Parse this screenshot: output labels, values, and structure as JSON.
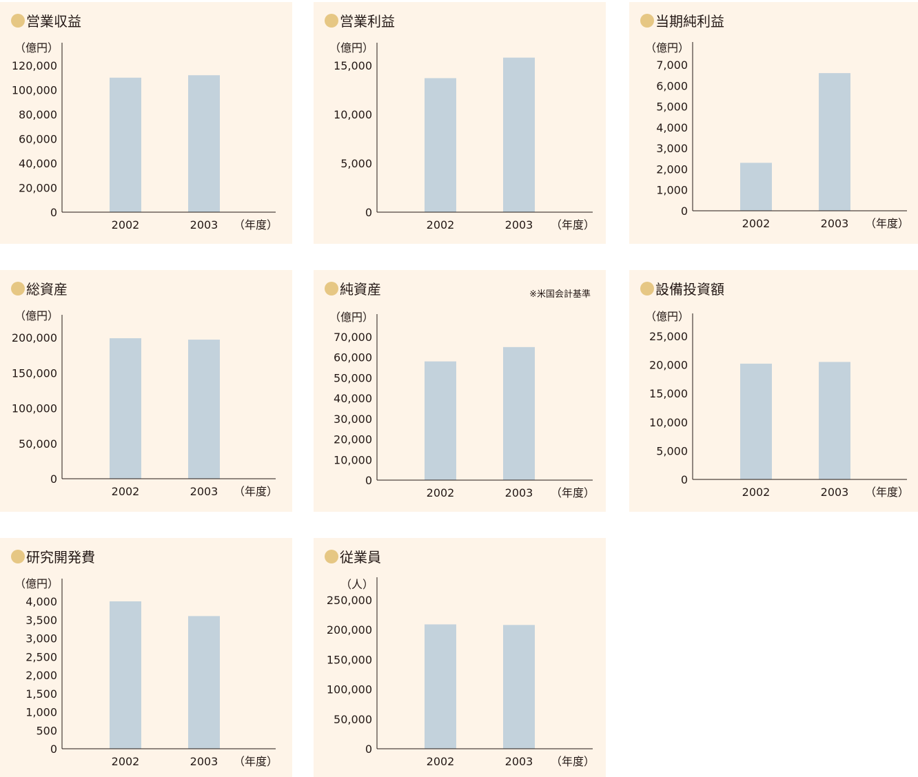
{
  "colors": {
    "panel_bg": "#fef4e8",
    "bar": "#c3d2dc",
    "title_dot": "#e6c784",
    "axis": "#231815"
  },
  "chart_data": [
    {
      "id": "revenue",
      "type": "bar",
      "title": "営業収益",
      "unit": "（億円）",
      "xunit": "（年度）",
      "note": "",
      "categories": [
        "2002",
        "2003"
      ],
      "values": [
        110000,
        112000
      ],
      "ylim": [
        0,
        120000
      ],
      "yticks": [
        0,
        20000,
        40000,
        60000,
        80000,
        100000,
        120000
      ],
      "ytick_labels": [
        "0",
        "20,000",
        "40,000",
        "60,000",
        "80,000",
        "100,000",
        "120,000"
      ]
    },
    {
      "id": "operating-income",
      "type": "bar",
      "title": "営業利益",
      "unit": "（億円）",
      "xunit": "（年度）",
      "note": "",
      "categories": [
        "2002",
        "2003"
      ],
      "values": [
        13700,
        15800
      ],
      "ylim": [
        0,
        15000
      ],
      "yticks": [
        0,
        5000,
        10000,
        15000
      ],
      "ytick_labels": [
        "0",
        "5,000",
        "10,000",
        "15,000"
      ]
    },
    {
      "id": "net-income",
      "type": "bar",
      "title": "当期純利益",
      "unit": "（億円）",
      "xunit": "（年度）",
      "note": "",
      "categories": [
        "2002",
        "2003"
      ],
      "values": [
        2300,
        6600
      ],
      "ylim": [
        0,
        7000
      ],
      "yticks": [
        0,
        1000,
        2000,
        3000,
        4000,
        5000,
        6000,
        7000
      ],
      "ytick_labels": [
        "0",
        "1,000",
        "2,000",
        "3,000",
        "4,000",
        "5,000",
        "6,000",
        "7,000"
      ]
    },
    {
      "id": "total-assets",
      "type": "bar",
      "title": "総資産",
      "unit": "（億円）",
      "xunit": "（年度）",
      "note": "",
      "categories": [
        "2002",
        "2003"
      ],
      "values": [
        199000,
        197000
      ],
      "ylim": [
        0,
        200000
      ],
      "yticks": [
        0,
        50000,
        100000,
        150000,
        200000
      ],
      "ytick_labels": [
        "0",
        "50,000",
        "100,000",
        "150,000",
        "200,000"
      ]
    },
    {
      "id": "net-assets",
      "type": "bar",
      "title": "純資産",
      "unit": "（億円）",
      "xunit": "（年度）",
      "note": "※米国会計基準",
      "categories": [
        "2002",
        "2003"
      ],
      "values": [
        58000,
        65000
      ],
      "ylim": [
        0,
        70000
      ],
      "yticks": [
        0,
        10000,
        20000,
        30000,
        40000,
        50000,
        60000,
        70000
      ],
      "ytick_labels": [
        "0",
        "10,000",
        "20,000",
        "30,000",
        "40,000",
        "50,000",
        "60,000",
        "70,000"
      ]
    },
    {
      "id": "capex",
      "type": "bar",
      "title": "設備投資額",
      "unit": "（億円）",
      "xunit": "（年度）",
      "note": "",
      "categories": [
        "2002",
        "2003"
      ],
      "values": [
        20200,
        20500
      ],
      "ylim": [
        0,
        25000
      ],
      "yticks": [
        0,
        5000,
        10000,
        15000,
        20000,
        25000
      ],
      "ytick_labels": [
        "0",
        "5,000",
        "10,000",
        "15,000",
        "20,000",
        "25,000"
      ]
    },
    {
      "id": "rd-expense",
      "type": "bar",
      "title": "研究開発費",
      "unit": "（億円）",
      "xunit": "（年度）",
      "note": "",
      "categories": [
        "2002",
        "2003"
      ],
      "values": [
        4000,
        3600
      ],
      "ylim": [
        0,
        4000
      ],
      "yticks": [
        0,
        500,
        1000,
        1500,
        2000,
        2500,
        3000,
        3500,
        4000
      ],
      "ytick_labels": [
        "0",
        "500",
        "1,000",
        "1,500",
        "2,000",
        "2,500",
        "3,000",
        "3,500",
        "4,000"
      ]
    },
    {
      "id": "employees",
      "type": "bar",
      "title": "従業員",
      "unit": "（人）",
      "xunit": "（年度）",
      "note": "",
      "categories": [
        "2002",
        "2003"
      ],
      "values": [
        209000,
        208000
      ],
      "ylim": [
        0,
        250000
      ],
      "yticks": [
        0,
        50000,
        100000,
        150000,
        200000,
        250000
      ],
      "ytick_labels": [
        "0",
        "50,000",
        "100,000",
        "150,000",
        "200,000",
        "250,000"
      ]
    }
  ]
}
